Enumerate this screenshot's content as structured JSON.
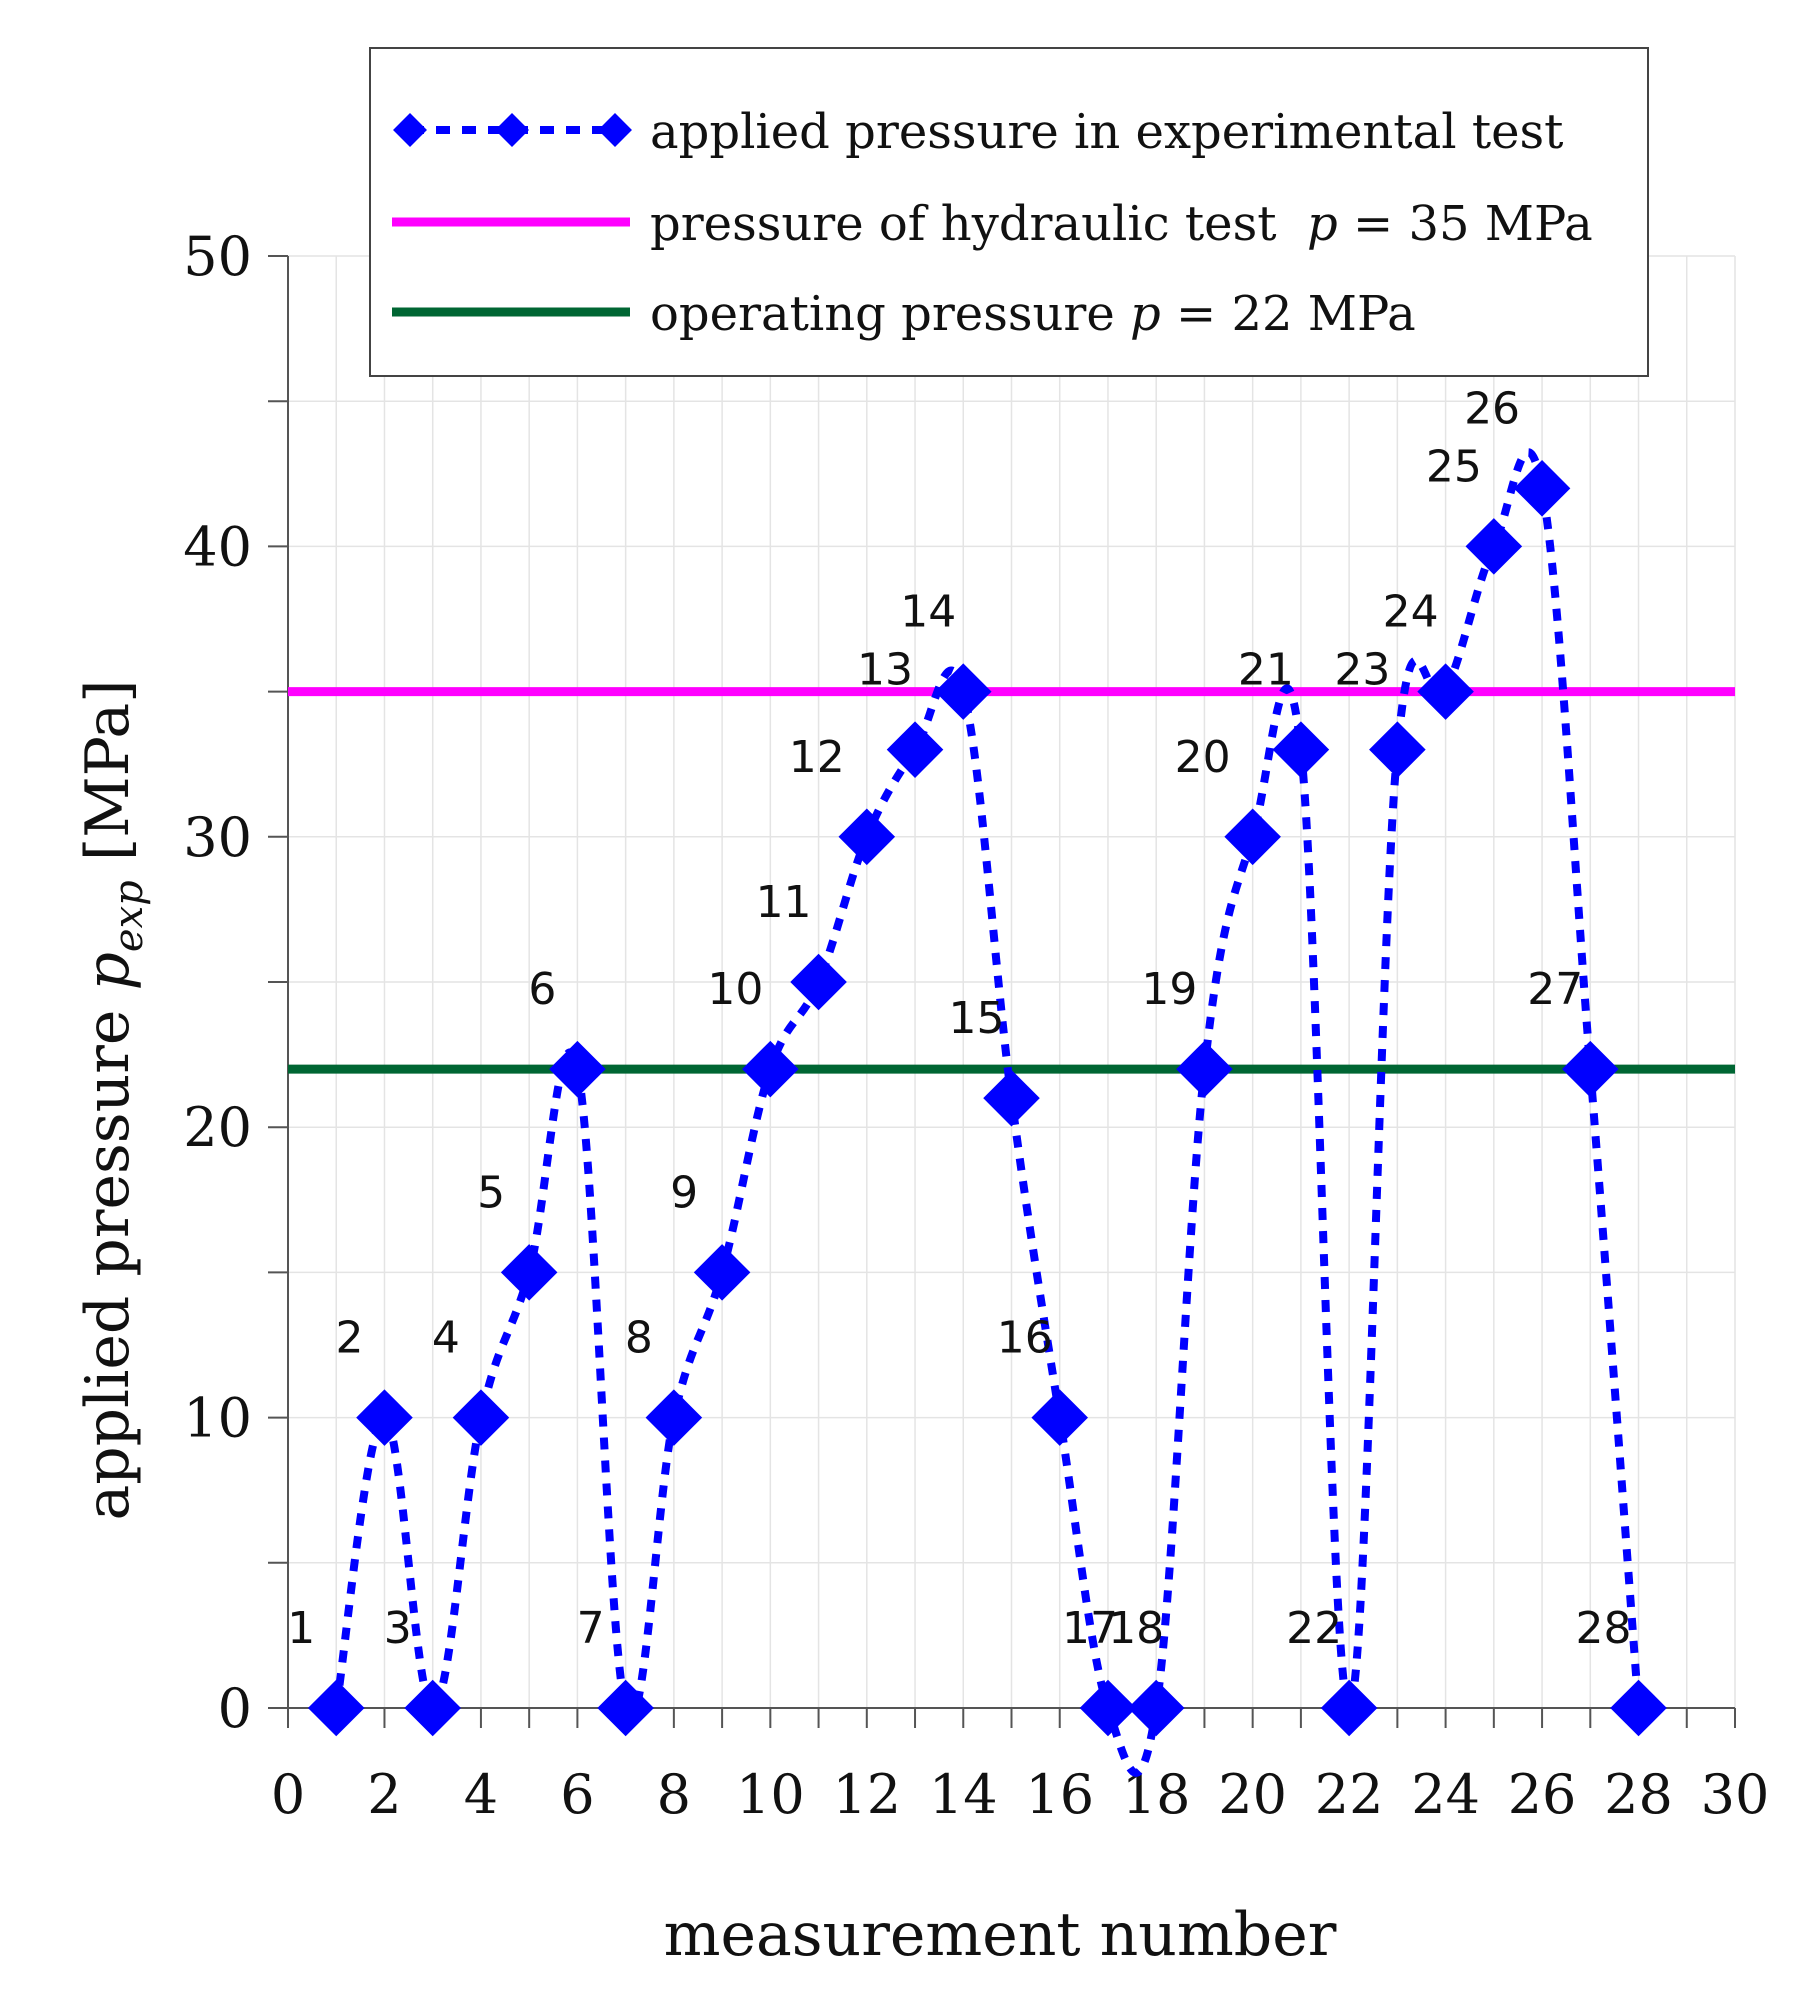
{
  "chart_data": {
    "type": "line",
    "xlabel": "measurement number",
    "ylabel": {
      "prefix": "applied pressure ",
      "var": "p",
      "sub": "exp",
      "unit": " [MPa]"
    },
    "xlim": [
      0,
      30
    ],
    "ylim": [
      0,
      50
    ],
    "xticks": [
      0,
      2,
      4,
      6,
      8,
      10,
      12,
      14,
      16,
      18,
      20,
      22,
      24,
      26,
      28,
      30
    ],
    "yticks": [
      0,
      10,
      20,
      30,
      40,
      50
    ],
    "grid": true,
    "legend_position": "top",
    "colors": {
      "series": "#0000ff",
      "hydraulic": "#ff00ff",
      "operating": "#006633"
    },
    "series": [
      {
        "name": "applied pressure in experimental test",
        "style": "dotted line with diamond markers",
        "x": [
          1,
          2,
          3,
          4,
          5,
          6,
          7,
          8,
          9,
          10,
          11,
          12,
          13,
          14,
          15,
          16,
          17,
          18,
          19,
          20,
          21,
          22,
          23,
          24,
          25,
          26,
          27,
          28
        ],
        "y": [
          0,
          10,
          0,
          10,
          15,
          22,
          0,
          10,
          15,
          22,
          25,
          30,
          33,
          35,
          21,
          10,
          0,
          0,
          22,
          30,
          33,
          0,
          33,
          35,
          40,
          42,
          22,
          0
        ],
        "labels": [
          "1",
          "2",
          "3",
          "4",
          "5",
          "6",
          "7",
          "8",
          "9",
          "10",
          "11",
          "12",
          "13",
          "14",
          "15",
          "16",
          "17",
          "18",
          "19",
          "20",
          "21",
          "22",
          "23",
          "24",
          "25",
          "26",
          "27",
          "28"
        ]
      }
    ],
    "reference_lines": [
      {
        "name": "pressure of hydraulic test",
        "legend_prefix": "pressure of hydraulic test  ",
        "var": "p",
        "legend_suffix": " = 35 MPa",
        "y": 35,
        "color": "#ff00ff"
      },
      {
        "name": "operating pressure",
        "legend_prefix": "operating pressure ",
        "var": "p",
        "legend_suffix": " = 22 MPa",
        "y": 22,
        "color": "#006633"
      }
    ]
  }
}
